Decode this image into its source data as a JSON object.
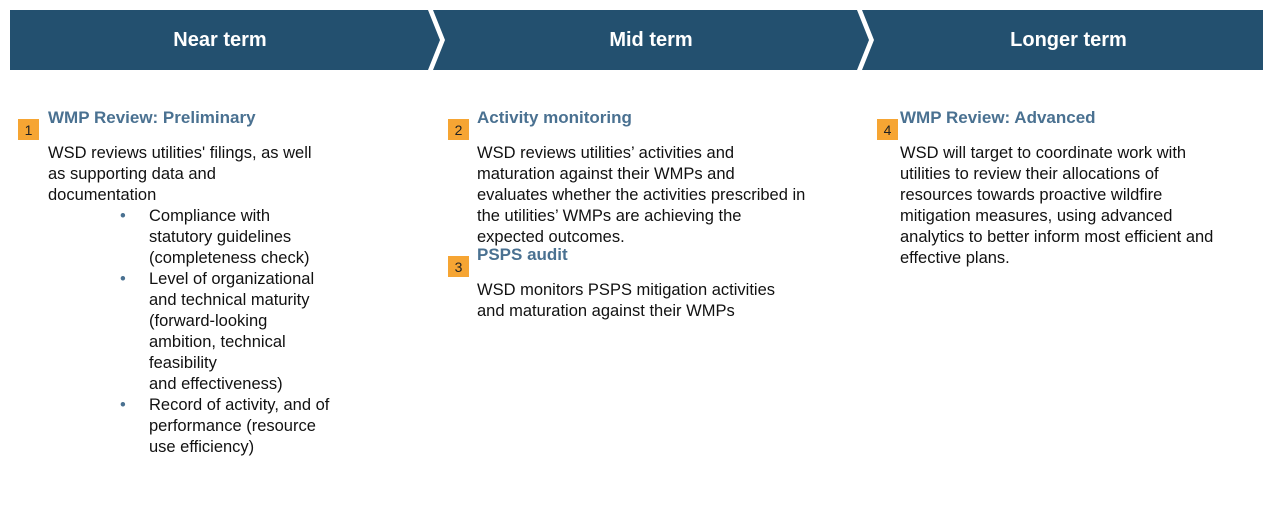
{
  "header": {
    "phases": [
      "Near term",
      "Mid term",
      "Longer term"
    ]
  },
  "columns": [
    {
      "items": [
        {
          "number": "1",
          "title": "WMP Review: Preliminary",
          "body": "WSD reviews utilities' filings, as well as supporting data and documentation",
          "bullets": [
            "Compliance with statutory guidelines (completeness check)",
            "Level of organizational and technical maturity (forward-looking ambition, technical feasibility\nand effectiveness)",
            "Record of activity, and of performance (resource use efficiency)"
          ]
        }
      ]
    },
    {
      "items": [
        {
          "number": "2",
          "title": "Activity monitoring",
          "body": "WSD reviews utilities’ activities and maturation against their WMPs and evaluates whether the activities prescribed in the utilities’ WMPs are achieving the expected outcomes."
        },
        {
          "number": "3",
          "title": "PSPS audit",
          "body": "WSD monitors PSPS mitigation activities and maturation against their WMPs"
        }
      ]
    },
    {
      "items": [
        {
          "number": "4",
          "title": "WMP Review: Advanced",
          "body": "WSD will target to coordinate work with utilities to review their allocations of resources towards proactive wildfire mitigation measures, using advanced analytics to better inform most efficient and effective plans."
        }
      ]
    }
  ]
}
